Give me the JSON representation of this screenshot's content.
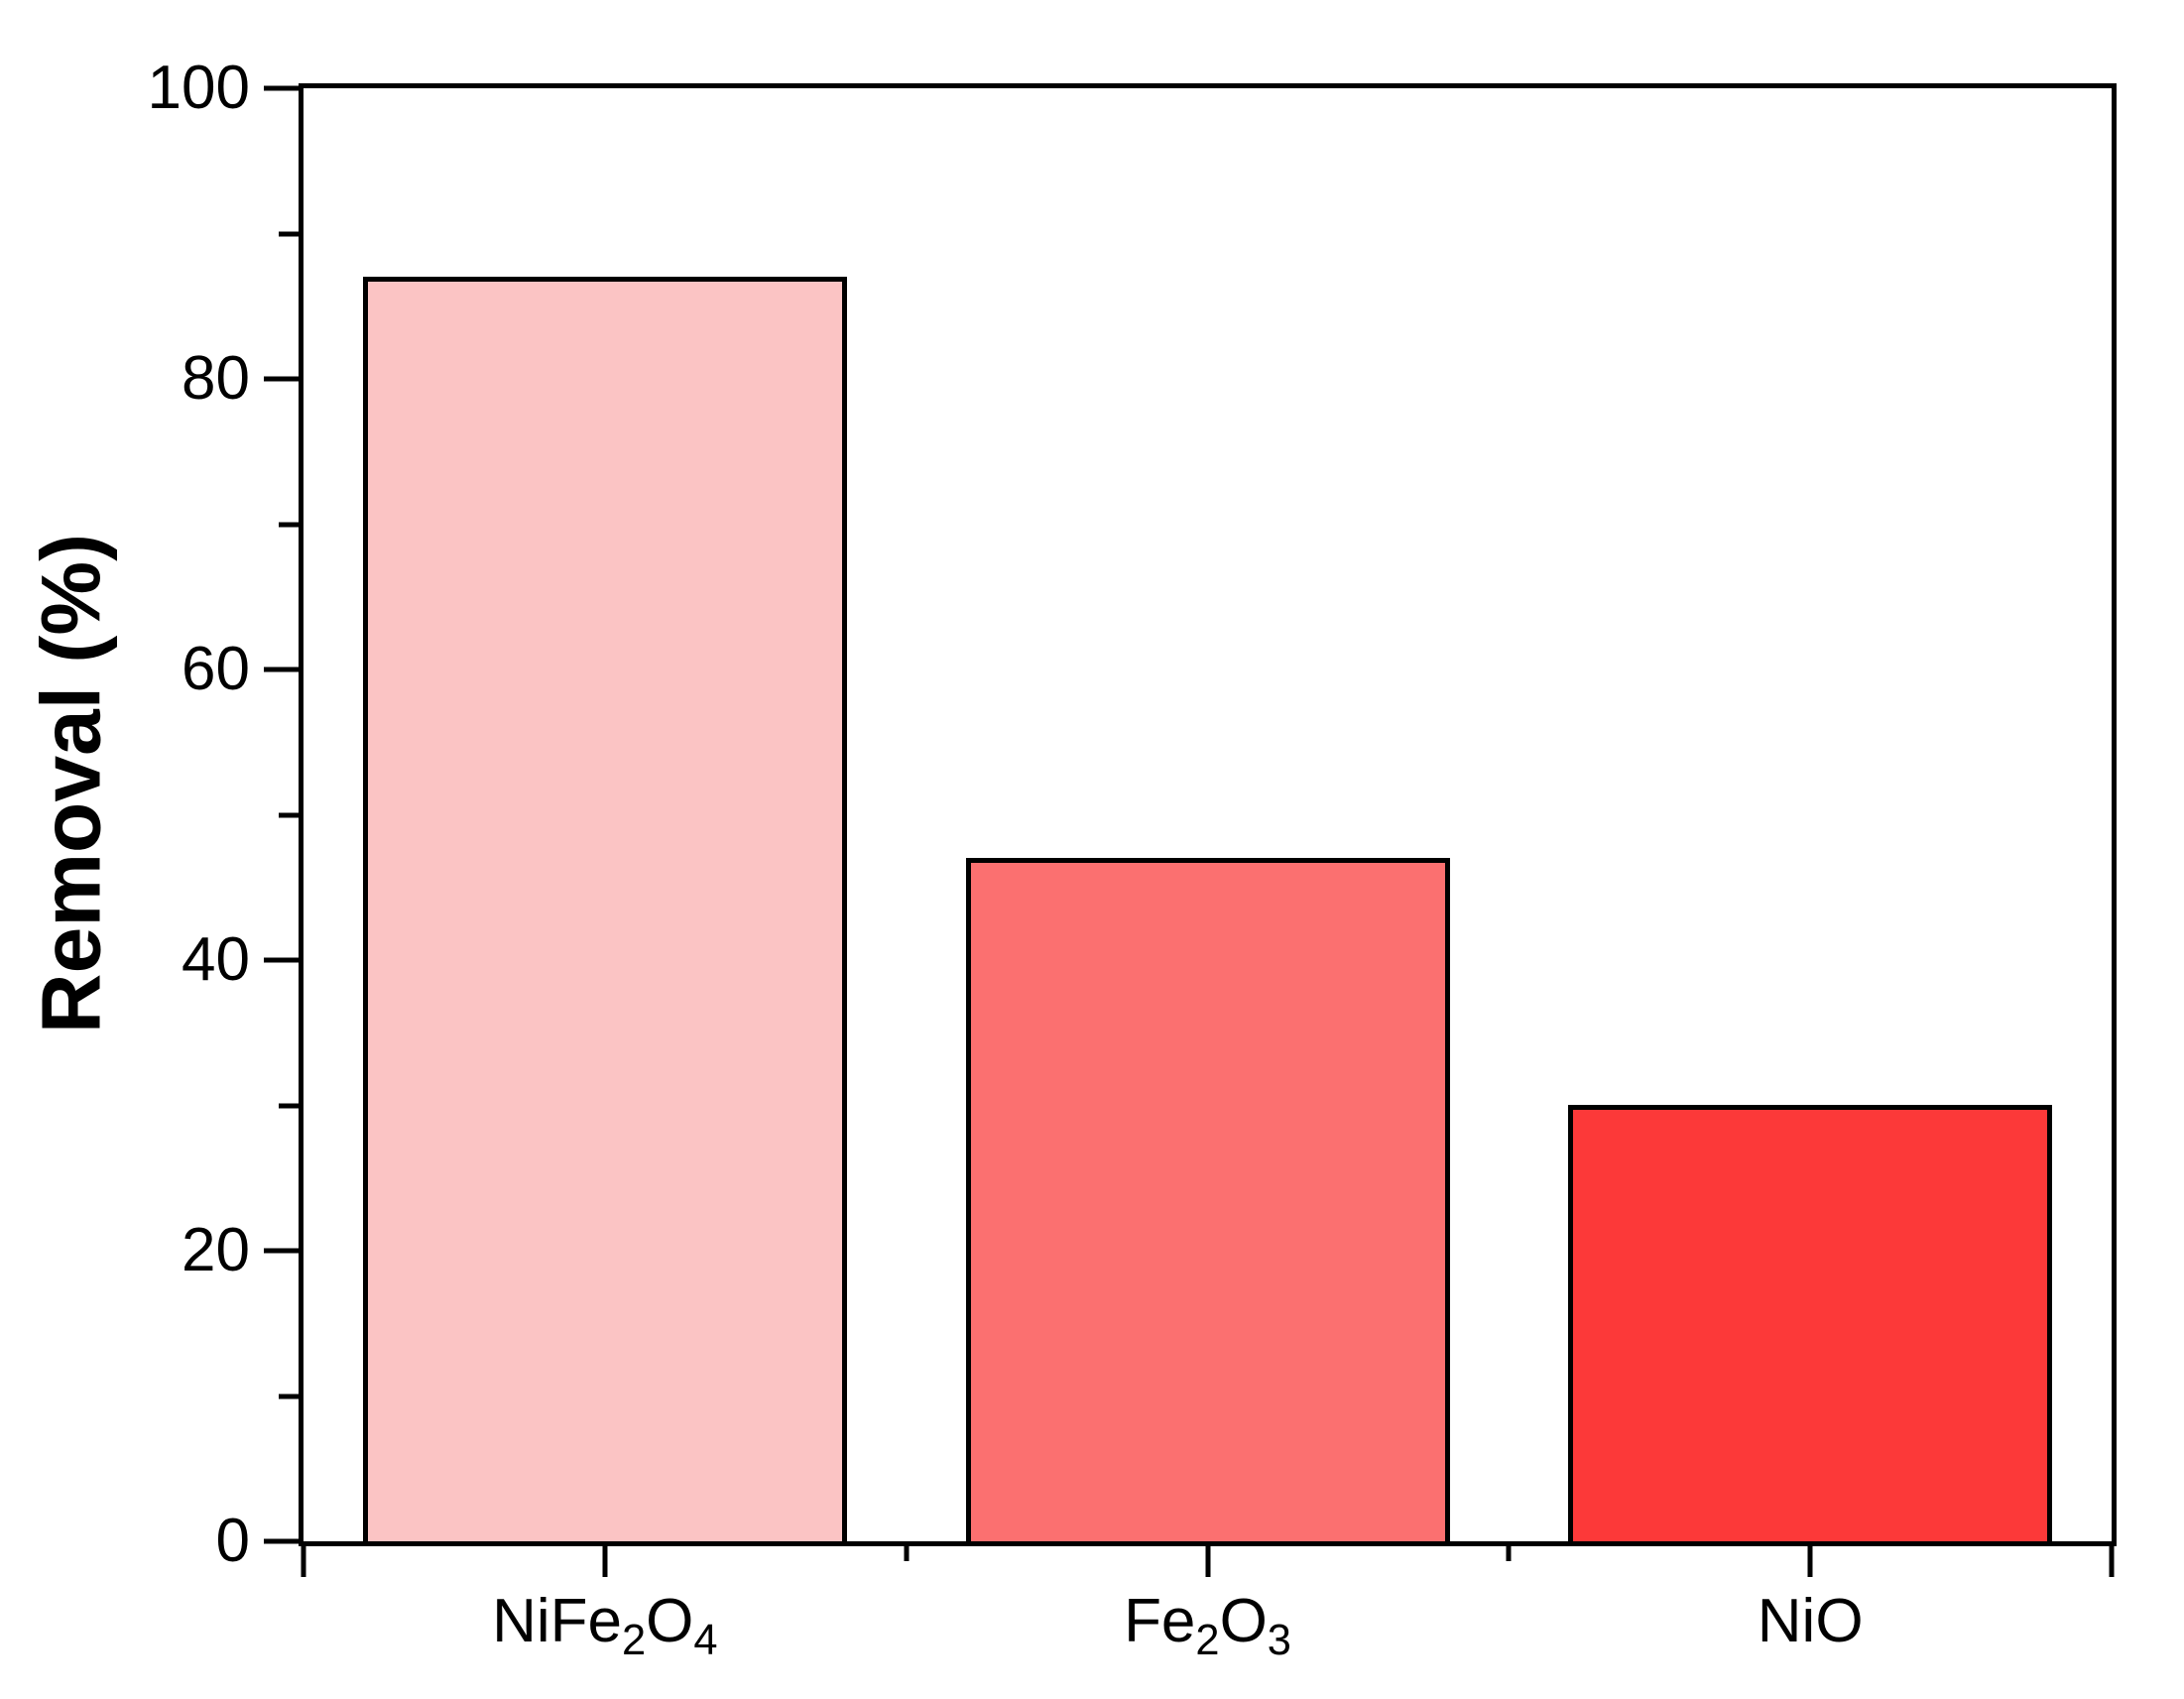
{
  "chart_data": {
    "type": "bar",
    "title": "",
    "ylabel": "Removal (%)",
    "xlabel": "",
    "ylim": [
      0,
      100
    ],
    "y_major_ticks": [
      0,
      20,
      40,
      60,
      80,
      100
    ],
    "y_minor_ticks": [
      10,
      30,
      50,
      70,
      90
    ],
    "categories": [
      "NiFe2O4",
      "Fe2O3",
      "NiO"
    ],
    "categories_rich": [
      [
        {
          "text": "NiFe"
        },
        {
          "text": "2",
          "subscript": true
        },
        {
          "text": "O"
        },
        {
          "text": "4",
          "subscript": true
        }
      ],
      [
        {
          "text": "Fe"
        },
        {
          "text": "2",
          "subscript": true
        },
        {
          "text": "O"
        },
        {
          "text": "3",
          "subscript": true
        }
      ],
      [
        {
          "text": "NiO"
        }
      ]
    ],
    "values": [
      87,
      47,
      30
    ],
    "bar_colors": [
      "#FBC4C4",
      "#FB7070",
      "#FC3939"
    ],
    "bar_border_color": "#000000",
    "axis_color": "#000000",
    "text_color": "#000000",
    "background_color": "#FFFFFF",
    "grid": false,
    "legend_position": "none"
  }
}
